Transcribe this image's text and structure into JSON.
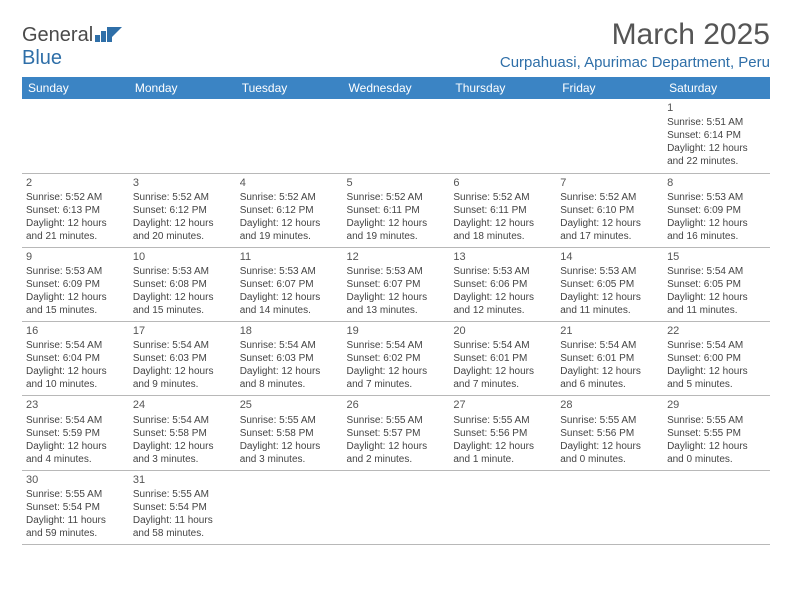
{
  "logo": {
    "text1": "General",
    "text2": "Blue"
  },
  "title": "March 2025",
  "location": "Curpahuasi, Apurimac Department, Peru",
  "colors": {
    "header_bg": "#3b84c4",
    "header_text": "#ffffff",
    "accent": "#2f6fa8",
    "body_text": "#444444",
    "border": "#b8b8b8"
  },
  "day_headers": [
    "Sunday",
    "Monday",
    "Tuesday",
    "Wednesday",
    "Thursday",
    "Friday",
    "Saturday"
  ],
  "weeks": [
    [
      null,
      null,
      null,
      null,
      null,
      null,
      {
        "n": "1",
        "sunrise": "Sunrise: 5:51 AM",
        "sunset": "Sunset: 6:14 PM",
        "daylight": "Daylight: 12 hours and 22 minutes."
      }
    ],
    [
      {
        "n": "2",
        "sunrise": "Sunrise: 5:52 AM",
        "sunset": "Sunset: 6:13 PM",
        "daylight": "Daylight: 12 hours and 21 minutes."
      },
      {
        "n": "3",
        "sunrise": "Sunrise: 5:52 AM",
        "sunset": "Sunset: 6:12 PM",
        "daylight": "Daylight: 12 hours and 20 minutes."
      },
      {
        "n": "4",
        "sunrise": "Sunrise: 5:52 AM",
        "sunset": "Sunset: 6:12 PM",
        "daylight": "Daylight: 12 hours and 19 minutes."
      },
      {
        "n": "5",
        "sunrise": "Sunrise: 5:52 AM",
        "sunset": "Sunset: 6:11 PM",
        "daylight": "Daylight: 12 hours and 19 minutes."
      },
      {
        "n": "6",
        "sunrise": "Sunrise: 5:52 AM",
        "sunset": "Sunset: 6:11 PM",
        "daylight": "Daylight: 12 hours and 18 minutes."
      },
      {
        "n": "7",
        "sunrise": "Sunrise: 5:52 AM",
        "sunset": "Sunset: 6:10 PM",
        "daylight": "Daylight: 12 hours and 17 minutes."
      },
      {
        "n": "8",
        "sunrise": "Sunrise: 5:53 AM",
        "sunset": "Sunset: 6:09 PM",
        "daylight": "Daylight: 12 hours and 16 minutes."
      }
    ],
    [
      {
        "n": "9",
        "sunrise": "Sunrise: 5:53 AM",
        "sunset": "Sunset: 6:09 PM",
        "daylight": "Daylight: 12 hours and 15 minutes."
      },
      {
        "n": "10",
        "sunrise": "Sunrise: 5:53 AM",
        "sunset": "Sunset: 6:08 PM",
        "daylight": "Daylight: 12 hours and 15 minutes."
      },
      {
        "n": "11",
        "sunrise": "Sunrise: 5:53 AM",
        "sunset": "Sunset: 6:07 PM",
        "daylight": "Daylight: 12 hours and 14 minutes."
      },
      {
        "n": "12",
        "sunrise": "Sunrise: 5:53 AM",
        "sunset": "Sunset: 6:07 PM",
        "daylight": "Daylight: 12 hours and 13 minutes."
      },
      {
        "n": "13",
        "sunrise": "Sunrise: 5:53 AM",
        "sunset": "Sunset: 6:06 PM",
        "daylight": "Daylight: 12 hours and 12 minutes."
      },
      {
        "n": "14",
        "sunrise": "Sunrise: 5:53 AM",
        "sunset": "Sunset: 6:05 PM",
        "daylight": "Daylight: 12 hours and 11 minutes."
      },
      {
        "n": "15",
        "sunrise": "Sunrise: 5:54 AM",
        "sunset": "Sunset: 6:05 PM",
        "daylight": "Daylight: 12 hours and 11 minutes."
      }
    ],
    [
      {
        "n": "16",
        "sunrise": "Sunrise: 5:54 AM",
        "sunset": "Sunset: 6:04 PM",
        "daylight": "Daylight: 12 hours and 10 minutes."
      },
      {
        "n": "17",
        "sunrise": "Sunrise: 5:54 AM",
        "sunset": "Sunset: 6:03 PM",
        "daylight": "Daylight: 12 hours and 9 minutes."
      },
      {
        "n": "18",
        "sunrise": "Sunrise: 5:54 AM",
        "sunset": "Sunset: 6:03 PM",
        "daylight": "Daylight: 12 hours and 8 minutes."
      },
      {
        "n": "19",
        "sunrise": "Sunrise: 5:54 AM",
        "sunset": "Sunset: 6:02 PM",
        "daylight": "Daylight: 12 hours and 7 minutes."
      },
      {
        "n": "20",
        "sunrise": "Sunrise: 5:54 AM",
        "sunset": "Sunset: 6:01 PM",
        "daylight": "Daylight: 12 hours and 7 minutes."
      },
      {
        "n": "21",
        "sunrise": "Sunrise: 5:54 AM",
        "sunset": "Sunset: 6:01 PM",
        "daylight": "Daylight: 12 hours and 6 minutes."
      },
      {
        "n": "22",
        "sunrise": "Sunrise: 5:54 AM",
        "sunset": "Sunset: 6:00 PM",
        "daylight": "Daylight: 12 hours and 5 minutes."
      }
    ],
    [
      {
        "n": "23",
        "sunrise": "Sunrise: 5:54 AM",
        "sunset": "Sunset: 5:59 PM",
        "daylight": "Daylight: 12 hours and 4 minutes."
      },
      {
        "n": "24",
        "sunrise": "Sunrise: 5:54 AM",
        "sunset": "Sunset: 5:58 PM",
        "daylight": "Daylight: 12 hours and 3 minutes."
      },
      {
        "n": "25",
        "sunrise": "Sunrise: 5:55 AM",
        "sunset": "Sunset: 5:58 PM",
        "daylight": "Daylight: 12 hours and 3 minutes."
      },
      {
        "n": "26",
        "sunrise": "Sunrise: 5:55 AM",
        "sunset": "Sunset: 5:57 PM",
        "daylight": "Daylight: 12 hours and 2 minutes."
      },
      {
        "n": "27",
        "sunrise": "Sunrise: 5:55 AM",
        "sunset": "Sunset: 5:56 PM",
        "daylight": "Daylight: 12 hours and 1 minute."
      },
      {
        "n": "28",
        "sunrise": "Sunrise: 5:55 AM",
        "sunset": "Sunset: 5:56 PM",
        "daylight": "Daylight: 12 hours and 0 minutes."
      },
      {
        "n": "29",
        "sunrise": "Sunrise: 5:55 AM",
        "sunset": "Sunset: 5:55 PM",
        "daylight": "Daylight: 12 hours and 0 minutes."
      }
    ],
    [
      {
        "n": "30",
        "sunrise": "Sunrise: 5:55 AM",
        "sunset": "Sunset: 5:54 PM",
        "daylight": "Daylight: 11 hours and 59 minutes."
      },
      {
        "n": "31",
        "sunrise": "Sunrise: 5:55 AM",
        "sunset": "Sunset: 5:54 PM",
        "daylight": "Daylight: 11 hours and 58 minutes."
      },
      null,
      null,
      null,
      null,
      null
    ]
  ]
}
